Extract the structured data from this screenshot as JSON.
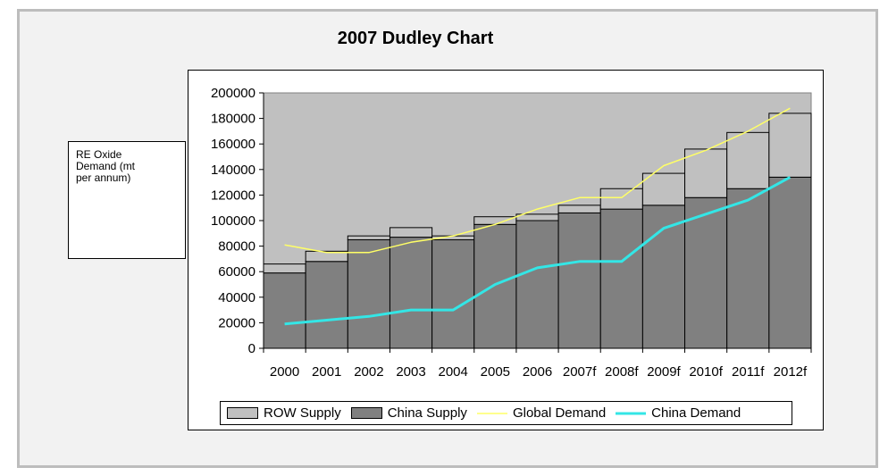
{
  "chart_data": {
    "type": "bar",
    "title": "2007 Dudley Chart",
    "ylabel": "RE Oxide Demand (mt per annum)",
    "xlabel": "",
    "ylim": [
      0,
      200000
    ],
    "yticks": [
      0,
      20000,
      40000,
      60000,
      80000,
      100000,
      120000,
      140000,
      160000,
      180000,
      200000
    ],
    "categories": [
      "2000",
      "2001",
      "2002",
      "2003",
      "2004",
      "2005",
      "2006",
      "2007f",
      "2008f",
      "2009f",
      "2010f",
      "2011f",
      "2012f"
    ],
    "stacked": true,
    "series": [
      {
        "name": "China Supply",
        "kind": "bar",
        "color": "#808080",
        "values": [
          59000,
          68000,
          85000,
          87000,
          85000,
          97000,
          100000,
          106000,
          109000,
          112000,
          118000,
          125000,
          134000
        ]
      },
      {
        "name": "ROW Supply",
        "kind": "bar",
        "color": "#c0c0c0",
        "values": [
          7000,
          8000,
          3000,
          7500,
          3000,
          6000,
          5000,
          6000,
          16000,
          25000,
          38000,
          44000,
          50000
        ]
      },
      {
        "name": "Global Demand",
        "kind": "line",
        "color": "#ffff66",
        "values": [
          81000,
          75000,
          75000,
          83000,
          88000,
          97000,
          109000,
          118000,
          118000,
          143000,
          155000,
          170000,
          188000
        ]
      },
      {
        "name": "China Demand",
        "kind": "line",
        "color": "#33e6e6",
        "values": [
          19000,
          22000,
          25000,
          30000,
          30000,
          50000,
          63000,
          68000,
          68000,
          94000,
          105000,
          116000,
          134000
        ]
      }
    ],
    "legend_order": [
      "ROW Supply",
      "China Supply",
      "Global Demand",
      "China Demand"
    ],
    "legend_position": "bottom",
    "plot_background": "#c0c0c0",
    "grid": false
  }
}
